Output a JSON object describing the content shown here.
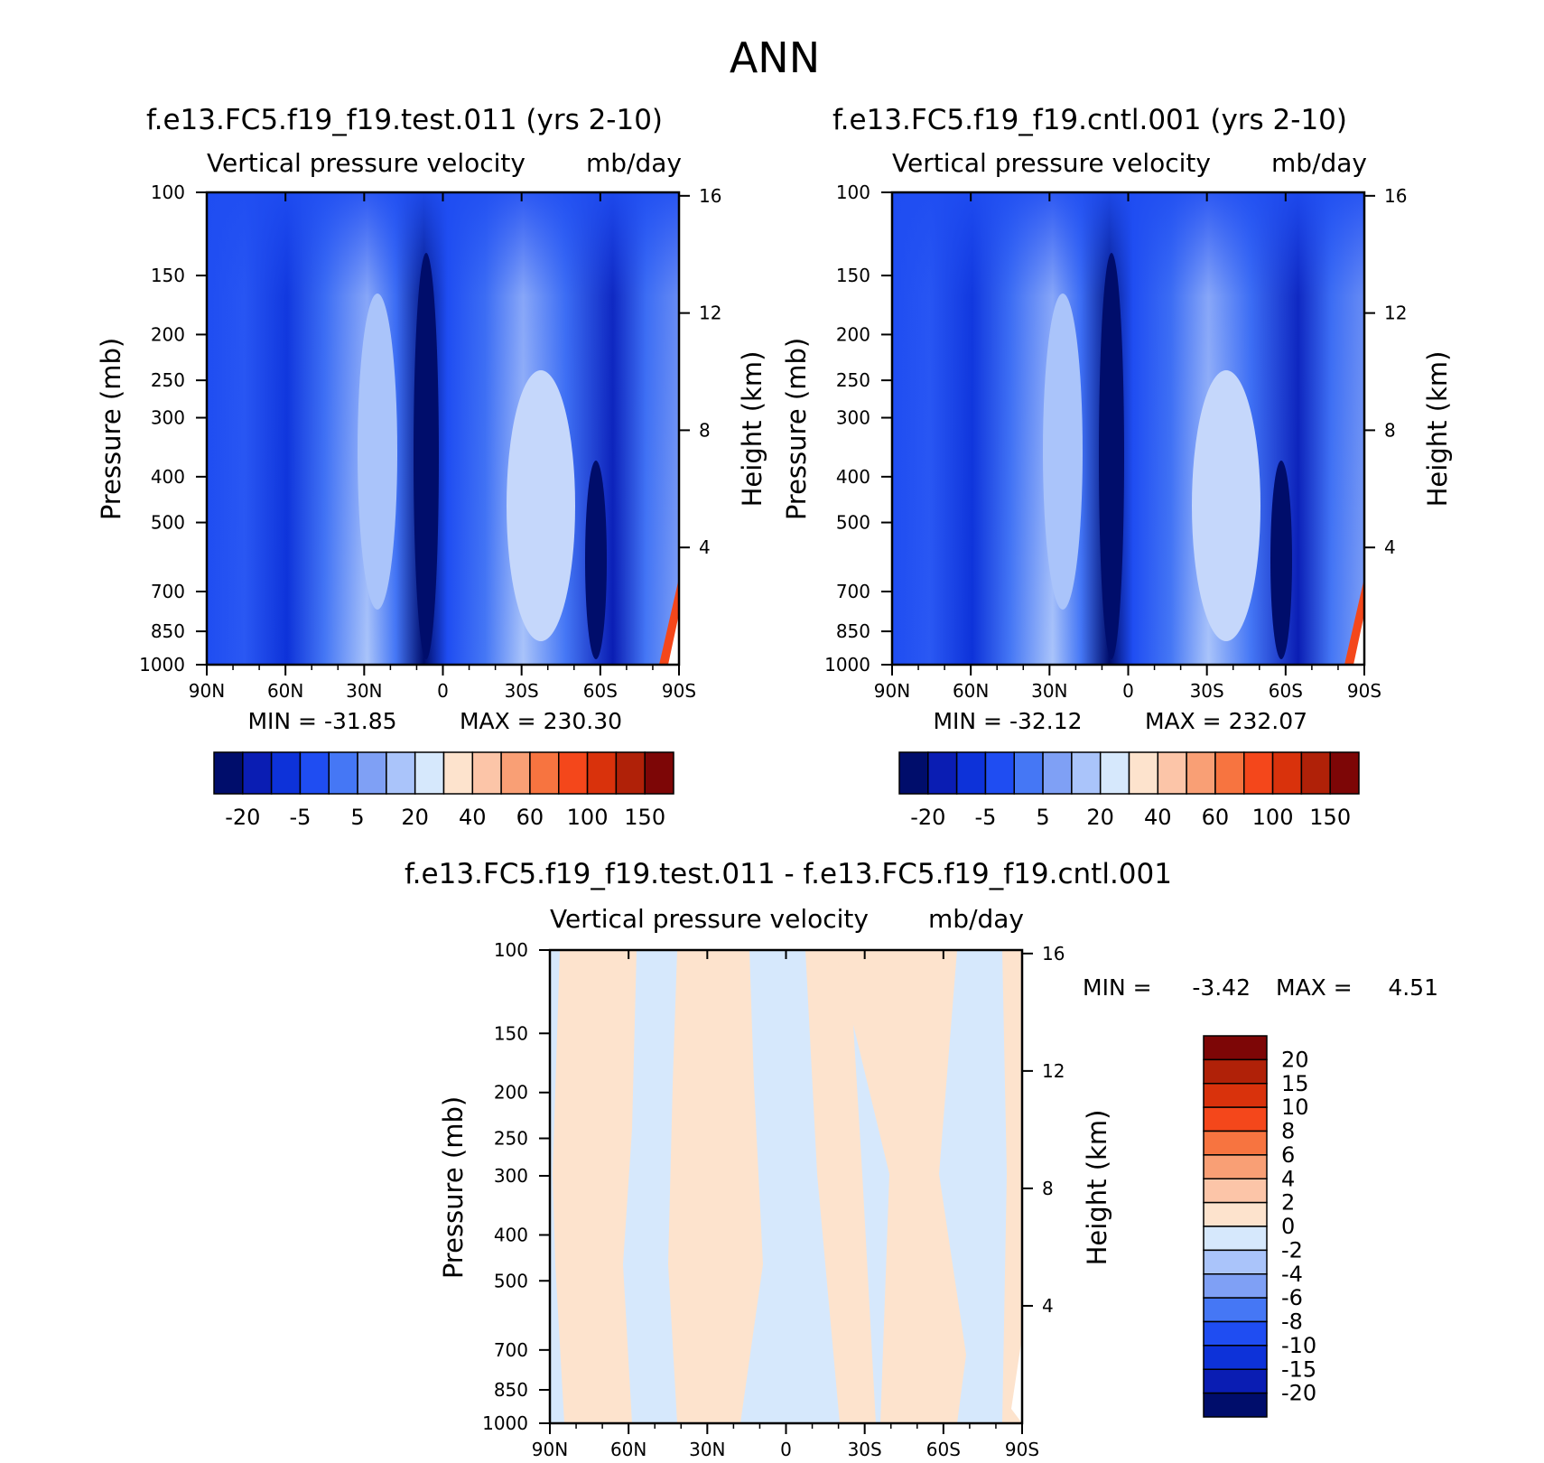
{
  "main_title": "ANN",
  "chart_data": [
    {
      "type": "heatmap",
      "id": "test",
      "title": "f.e13.FC5.f19_f19.test.011 (yrs 2-10)",
      "subtitle": "Vertical pressure velocity",
      "units": "mb/day",
      "ylabel": "Pressure (mb)",
      "y2label": "Height (km)",
      "xticks": [
        "90N",
        "60N",
        "30N",
        "0",
        "30S",
        "60S",
        "90S"
      ],
      "yticks": [
        "100",
        "150",
        "200",
        "250",
        "300",
        "400",
        "500",
        "700",
        "850",
        "1000"
      ],
      "y2ticks": [
        "16",
        "12",
        "8",
        "4"
      ],
      "ylim": [
        1000,
        100
      ],
      "xlim": [
        "90N",
        "90S"
      ],
      "min_label": "MIN = -31.85",
      "max_label": "MAX = 230.30",
      "min": -31.85,
      "max": 230.3,
      "colorbar_labels": [
        "-20",
        "-5",
        "5",
        "20",
        "40",
        "60",
        "100",
        "150"
      ],
      "colorbar_colors": [
        "#000d6b",
        "#0a1db3",
        "#0d32d9",
        "#1f4df2",
        "#4577f5",
        "#7fa0f5",
        "#aac4fa",
        "#d6e8fc",
        "#fde3cd",
        "#fcc5a8",
        "#f99f75",
        "#f77440",
        "#f4471b",
        "#d9320c",
        "#b02108",
        "#7d0606"
      ]
    },
    {
      "type": "heatmap",
      "id": "cntl",
      "title": "f.e13.FC5.f19_f19.cntl.001 (yrs 2-10)",
      "subtitle": "Vertical pressure velocity",
      "units": "mb/day",
      "ylabel": "Pressure (mb)",
      "y2label": "Height (km)",
      "xticks": [
        "90N",
        "60N",
        "30N",
        "0",
        "30S",
        "60S",
        "90S"
      ],
      "yticks": [
        "100",
        "150",
        "200",
        "250",
        "300",
        "400",
        "500",
        "700",
        "850",
        "1000"
      ],
      "y2ticks": [
        "16",
        "12",
        "8",
        "4"
      ],
      "ylim": [
        1000,
        100
      ],
      "xlim": [
        "90N",
        "90S"
      ],
      "min_label": "MIN = -32.12",
      "max_label": "MAX = 232.07",
      "min": -32.12,
      "max": 232.07,
      "colorbar_labels": [
        "-20",
        "-5",
        "5",
        "20",
        "40",
        "60",
        "100",
        "150"
      ],
      "colorbar_colors": [
        "#000d6b",
        "#0a1db3",
        "#0d32d9",
        "#1f4df2",
        "#4577f5",
        "#7fa0f5",
        "#aac4fa",
        "#d6e8fc",
        "#fde3cd",
        "#fcc5a8",
        "#f99f75",
        "#f77440",
        "#f4471b",
        "#d9320c",
        "#b02108",
        "#7d0606"
      ]
    },
    {
      "type": "heatmap",
      "id": "diff",
      "title": "f.e13.FC5.f19_f19.test.011 - f.e13.FC5.f19_f19.cntl.001",
      "subtitle": "Vertical pressure velocity",
      "units": "mb/day",
      "ylabel": "Pressure (mb)",
      "y2label": "Height (km)",
      "xticks": [
        "90N",
        "60N",
        "30N",
        "0",
        "30S",
        "60S",
        "90S"
      ],
      "yticks": [
        "100",
        "150",
        "200",
        "250",
        "300",
        "400",
        "500",
        "700",
        "850",
        "1000"
      ],
      "y2ticks": [
        "16",
        "12",
        "8",
        "4"
      ],
      "ylim": [
        1000,
        100
      ],
      "xlim": [
        "90N",
        "90S"
      ],
      "min_label": "MIN =",
      "min_value": "-3.42",
      "max_label": "MAX =",
      "max_value": "4.51",
      "min": -3.42,
      "max": 4.51,
      "colorbar_labels": [
        "20",
        "15",
        "10",
        "8",
        "6",
        "4",
        "2",
        "0",
        "-2",
        "-4",
        "-6",
        "-8",
        "-10",
        "-15",
        "-20"
      ],
      "colorbar_colors": [
        "#7d0606",
        "#b02108",
        "#d9320c",
        "#f4471b",
        "#f77440",
        "#f99f75",
        "#fcc5a8",
        "#fde3cd",
        "#d6e8fc",
        "#aac4fa",
        "#7fa0f5",
        "#4577f5",
        "#1f4df2",
        "#0d32d9",
        "#0a1db3",
        "#000d6b"
      ]
    }
  ]
}
